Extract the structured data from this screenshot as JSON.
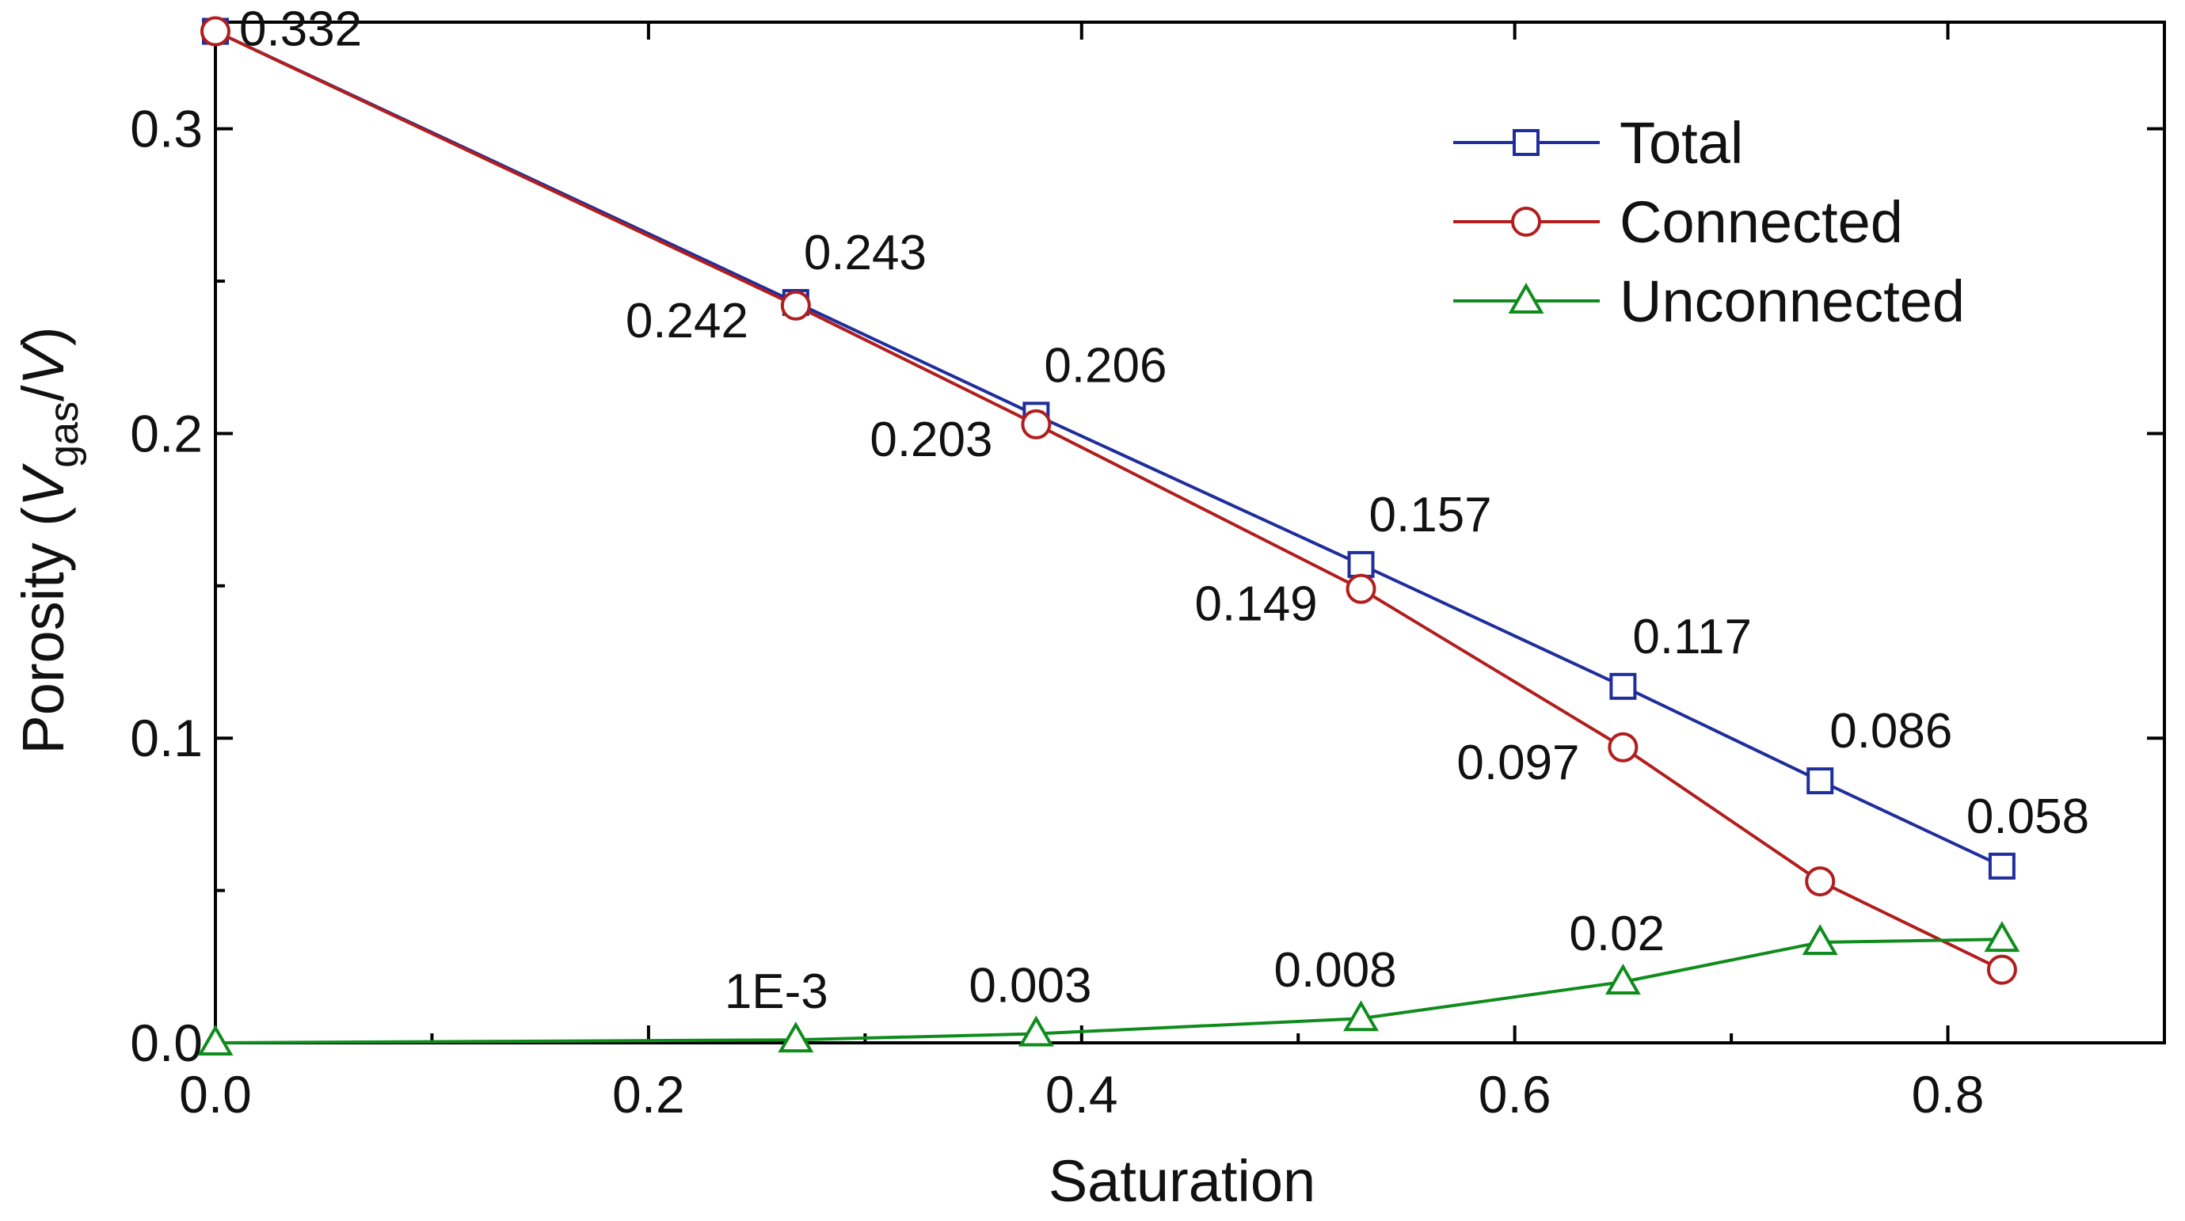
{
  "chart_data": {
    "type": "line",
    "xlabel": "Saturation",
    "ylabel_parts": [
      "Porosity (",
      "V",
      "gas",
      "/",
      "V",
      ")"
    ],
    "xlim": [
      0.0,
      0.9
    ],
    "ylim": [
      0.0,
      0.335
    ],
    "xticks": [
      0.0,
      0.2,
      0.4,
      0.6,
      0.8
    ],
    "xtick_labels": [
      "0.0",
      "0.2",
      "0.4",
      "0.6",
      "0.8"
    ],
    "yticks": [
      0.0,
      0.1,
      0.2,
      0.3
    ],
    "ytick_labels": [
      "0.0",
      "0.1",
      "0.2",
      "0.3"
    ],
    "legend_position": "top-right",
    "series": [
      {
        "name": "Total",
        "color": "#1f2e9c",
        "marker": "square",
        "points": [
          [
            0.0,
            0.332
          ],
          [
            0.268,
            0.243
          ],
          [
            0.379,
            0.206
          ],
          [
            0.529,
            0.157
          ],
          [
            0.65,
            0.117
          ],
          [
            0.741,
            0.086
          ],
          [
            0.825,
            0.058
          ]
        ],
        "labels": [
          "",
          "0.243",
          "0.206",
          "0.157",
          "0.117",
          "0.086",
          "0.058"
        ]
      },
      {
        "name": "Connected",
        "color": "#b11e1e",
        "marker": "circle",
        "points": [
          [
            0.0,
            0.332
          ],
          [
            0.268,
            0.242
          ],
          [
            0.379,
            0.203
          ],
          [
            0.529,
            0.149
          ],
          [
            0.65,
            0.097
          ],
          [
            0.741,
            0.053
          ],
          [
            0.825,
            0.024
          ]
        ],
        "labels": [
          "0.332",
          "0.242",
          "0.203",
          "0.149",
          "0.097",
          "",
          ""
        ]
      },
      {
        "name": "Unconnected",
        "color": "#0f8c1c",
        "marker": "triangle",
        "points": [
          [
            0.0,
            0.0
          ],
          [
            0.268,
            0.001
          ],
          [
            0.379,
            0.003
          ],
          [
            0.529,
            0.008
          ],
          [
            0.65,
            0.02
          ],
          [
            0.741,
            0.033
          ],
          [
            0.825,
            0.034
          ]
        ],
        "labels": [
          "",
          "1E-3",
          "0.003",
          "0.008",
          "0.02",
          "",
          ""
        ]
      }
    ]
  }
}
